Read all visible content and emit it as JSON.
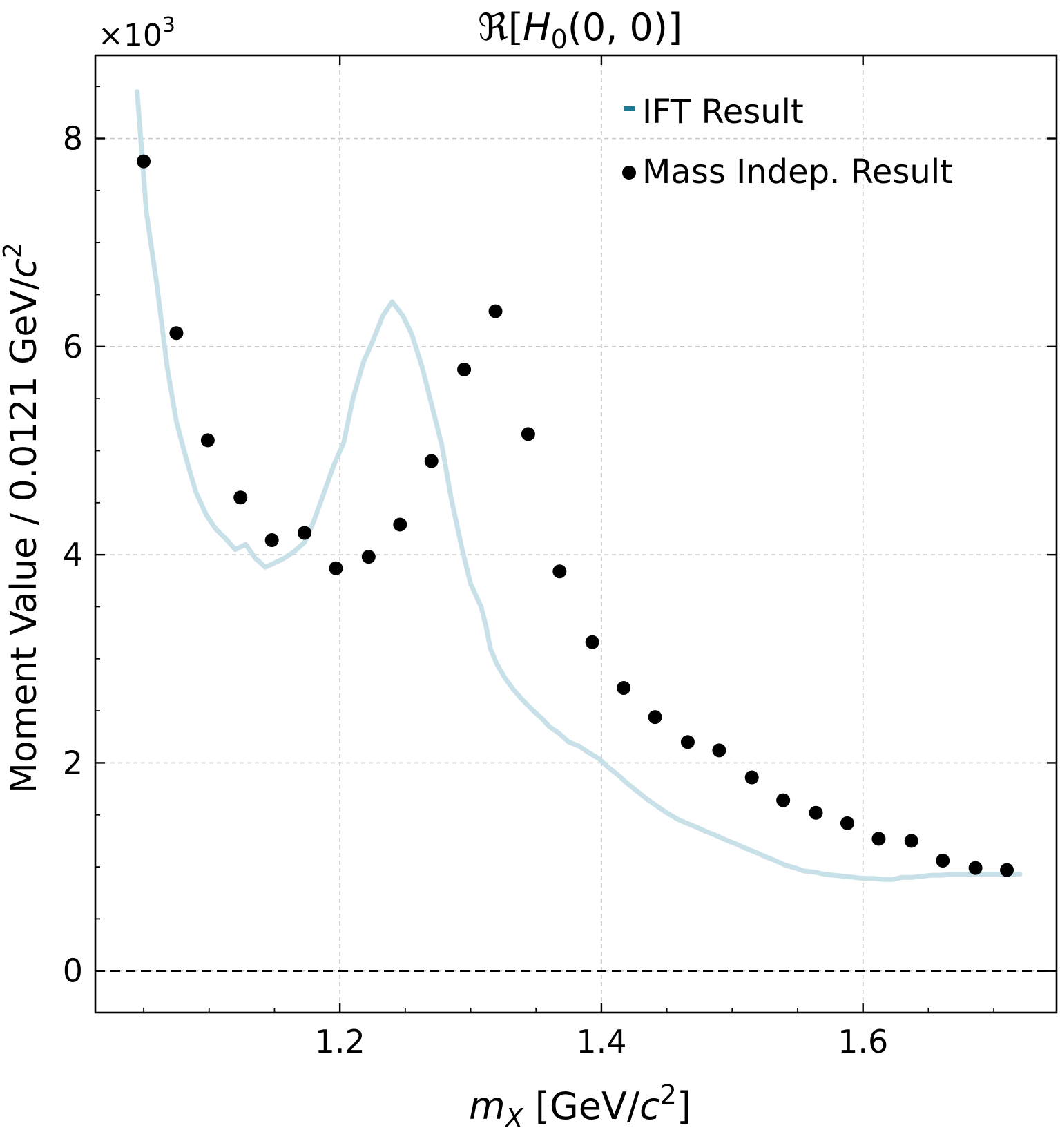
{
  "chart_data": {
    "type": "line",
    "title": "ℜ[H₀(0, 0)]",
    "title_parts": {
      "prefix": "ℜ[",
      "symbol": "H",
      "subscript": "0",
      "suffix": "(0, 0)]"
    },
    "xlabel": "m_X [GeV/c²]",
    "xlabel_parts": {
      "symbol": "m",
      "subscript": "X",
      "prefix": " [GeV/",
      "c": "c",
      "sup": "2",
      "suffix": "]"
    },
    "ylabel": "Moment Value / 0.0121 GeV/c²",
    "ylabel_parts": {
      "prefix": "Moment Value / 0.0121 GeV/",
      "c": "c",
      "sup": "2"
    },
    "y_multiplier": {
      "text": "×10",
      "exponent": "3"
    },
    "xlim": [
      1.013,
      1.748
    ],
    "ylim": [
      -0.4,
      8.8
    ],
    "y_unit_scale": 1000,
    "x_ticks": [
      "1.2",
      "1.4",
      "1.6"
    ],
    "x_tick_values": [
      1.2,
      1.4,
      1.6
    ],
    "y_ticks": [
      "0",
      "2",
      "4",
      "6",
      "8"
    ],
    "y_tick_values": [
      0,
      2,
      4,
      6,
      8
    ],
    "grid": true,
    "zero_line": true,
    "legend_position": "top-right",
    "series": [
      {
        "name": "IFT Result",
        "kind": "line",
        "color": "#c8e0e8",
        "legend_color": "#1a7a96",
        "x": [
          1.045,
          1.052,
          1.06,
          1.068,
          1.075,
          1.083,
          1.09,
          1.098,
          1.105,
          1.113,
          1.12,
          1.128,
          1.135,
          1.143,
          1.15,
          1.158,
          1.165,
          1.173,
          1.18,
          1.188,
          1.195,
          1.203,
          1.21,
          1.218,
          1.225,
          1.233,
          1.24,
          1.248,
          1.255,
          1.263,
          1.27,
          1.278,
          1.285,
          1.293,
          1.3,
          1.308,
          1.312,
          1.315,
          1.32,
          1.326,
          1.333,
          1.34,
          1.348,
          1.355,
          1.36,
          1.368,
          1.375,
          1.383,
          1.39,
          1.398,
          1.405,
          1.413,
          1.42,
          1.428,
          1.435,
          1.443,
          1.45,
          1.458,
          1.465,
          1.473,
          1.48,
          1.488,
          1.495,
          1.503,
          1.51,
          1.518,
          1.525,
          1.533,
          1.54,
          1.548,
          1.555,
          1.563,
          1.57,
          1.578,
          1.585,
          1.593,
          1.6,
          1.608,
          1.615,
          1.623,
          1.63,
          1.638,
          1.645,
          1.653,
          1.66,
          1.668,
          1.675,
          1.683,
          1.69,
          1.698,
          1.705,
          1.713,
          1.72
        ],
        "y": [
          8.45,
          7.3,
          6.6,
          5.8,
          5.28,
          4.9,
          4.6,
          4.38,
          4.25,
          4.15,
          4.05,
          4.1,
          3.97,
          3.88,
          3.92,
          3.97,
          4.03,
          4.12,
          4.32,
          4.6,
          4.85,
          5.08,
          5.5,
          5.85,
          6.05,
          6.3,
          6.43,
          6.3,
          6.12,
          5.8,
          5.45,
          5.05,
          4.55,
          4.08,
          3.72,
          3.5,
          3.3,
          3.1,
          2.95,
          2.82,
          2.7,
          2.6,
          2.5,
          2.42,
          2.35,
          2.28,
          2.2,
          2.16,
          2.1,
          2.04,
          1.96,
          1.88,
          1.8,
          1.72,
          1.65,
          1.58,
          1.52,
          1.46,
          1.42,
          1.38,
          1.34,
          1.3,
          1.26,
          1.22,
          1.18,
          1.14,
          1.1,
          1.06,
          1.02,
          0.99,
          0.96,
          0.95,
          0.93,
          0.92,
          0.91,
          0.9,
          0.89,
          0.89,
          0.88,
          0.88,
          0.9,
          0.9,
          0.91,
          0.92,
          0.92,
          0.93,
          0.93,
          0.93,
          0.93,
          0.93,
          0.93,
          0.93,
          0.93
        ]
      },
      {
        "name": "Mass Indep. Result",
        "kind": "scatter",
        "color": "#000000",
        "x": [
          1.05,
          1.075,
          1.099,
          1.124,
          1.148,
          1.173,
          1.197,
          1.222,
          1.246,
          1.27,
          1.295,
          1.319,
          1.344,
          1.368,
          1.393,
          1.417,
          1.441,
          1.466,
          1.49,
          1.515,
          1.539,
          1.564,
          1.588,
          1.612,
          1.637,
          1.661,
          1.686,
          1.71
        ],
        "y": [
          7.78,
          6.13,
          5.1,
          4.55,
          4.14,
          4.21,
          3.87,
          3.98,
          4.29,
          4.9,
          5.78,
          6.34,
          5.16,
          3.84,
          3.16,
          2.72,
          2.44,
          2.2,
          2.12,
          1.86,
          1.64,
          1.52,
          1.42,
          1.27,
          1.25,
          1.06,
          0.99,
          0.97
        ]
      }
    ]
  }
}
